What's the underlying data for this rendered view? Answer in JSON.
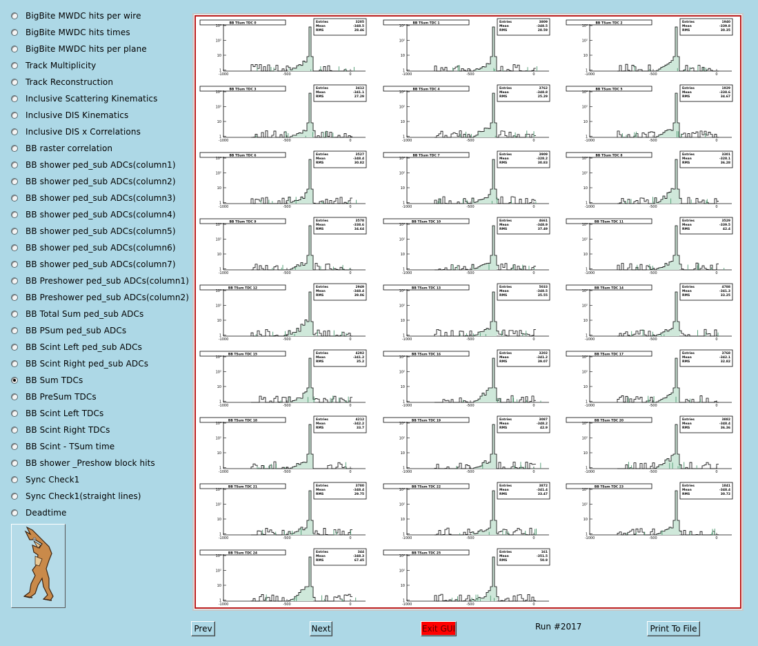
{
  "sidebar": {
    "options": [
      {
        "label": "BigBite MWDC hits per wire",
        "selected": false
      },
      {
        "label": "BigBite MWDC hits times",
        "selected": false
      },
      {
        "label": "BigBite MWDC hits per plane",
        "selected": false
      },
      {
        "label": "Track Multiplicity",
        "selected": false
      },
      {
        "label": "Track Reconstruction",
        "selected": false
      },
      {
        "label": "Inclusive Scattering Kinematics",
        "selected": false
      },
      {
        "label": "Inclusive DIS Kinematics",
        "selected": false
      },
      {
        "label": "Inclusive DIS x Correlations",
        "selected": false
      },
      {
        "label": "BB raster correlation",
        "selected": false
      },
      {
        "label": "BB shower ped_sub ADCs(column1)",
        "selected": false
      },
      {
        "label": "BB shower ped_sub ADCs(column2)",
        "selected": false
      },
      {
        "label": "BB shower ped_sub ADCs(column3)",
        "selected": false
      },
      {
        "label": "BB shower ped_sub ADCs(column4)",
        "selected": false
      },
      {
        "label": "BB shower ped_sub ADCs(column5)",
        "selected": false
      },
      {
        "label": "BB shower ped_sub ADCs(column6)",
        "selected": false
      },
      {
        "label": "BB shower ped_sub ADCs(column7)",
        "selected": false
      },
      {
        "label": "BB Preshower ped_sub ADCs(column1)",
        "selected": false
      },
      {
        "label": "BB Preshower ped_sub ADCs(column2)",
        "selected": false
      },
      {
        "label": "BB Total Sum ped_sub ADCs",
        "selected": false
      },
      {
        "label": "BB PSum ped_sub ADCs",
        "selected": false
      },
      {
        "label": "BB Scint Left ped_sub ADCs",
        "selected": false
      },
      {
        "label": "BB Scint Right ped_sub ADCs",
        "selected": false
      },
      {
        "label": "BB Sum TDCs",
        "selected": true
      },
      {
        "label": "BB PreSum TDCs",
        "selected": false
      },
      {
        "label": "BB Scint Left TDCs",
        "selected": false
      },
      {
        "label": "BB Scint Right TDCs",
        "selected": false
      },
      {
        "label": "BB Scint - TSum time",
        "selected": false
      },
      {
        "label": "BB shower _Preshow block hits",
        "selected": false
      },
      {
        "label": "Sync Check1",
        "selected": false
      },
      {
        "label": "Sync Check1(straight lines)",
        "selected": false
      },
      {
        "label": "Deadtime",
        "selected": false
      }
    ],
    "logo_icon": "coyote-logo-icon"
  },
  "canvas": {
    "border_color": "#b81a1a",
    "histograms": [
      {
        "title": "BB TSum TDC 0",
        "entries": "3205",
        "mean": "-348.5",
        "rms": "28.46"
      },
      {
        "title": "BB TSum TDC 1",
        "entries": "3809",
        "mean": "-348.5",
        "rms": "28.59"
      },
      {
        "title": "BB TSum TDC 2",
        "entries": "1940",
        "mean": "-339.8",
        "rms": "30.35"
      },
      {
        "title": "BB TSum TDC 3",
        "entries": "3412",
        "mean": "-341.1",
        "rms": "27.29"
      },
      {
        "title": "BB TSum TDC 4",
        "entries": "3762",
        "mean": "-348.8",
        "rms": "25.29"
      },
      {
        "title": "BB TSum TDC 5",
        "entries": "1929",
        "mean": "-338.6",
        "rms": "34.67"
      },
      {
        "title": "BB TSum TDC 6",
        "entries": "3527",
        "mean": "-348.4",
        "rms": "30.82"
      },
      {
        "title": "BB TSum TDC 7",
        "entries": "3909",
        "mean": "-328.2",
        "rms": "30.83"
      },
      {
        "title": "BB TSum TDC 8",
        "entries": "3301",
        "mean": "-328.1",
        "rms": "36.28"
      },
      {
        "title": "BB TSum TDC 9",
        "entries": "3578",
        "mean": "-338.6",
        "rms": "34.64"
      },
      {
        "title": "BB TSum TDC 10",
        "entries": "4661",
        "mean": "-348.9",
        "rms": "37.49"
      },
      {
        "title": "BB TSum TDC 11",
        "entries": "3529",
        "mean": "-339.5",
        "rms": "42.4"
      },
      {
        "title": "BB TSum TDC 12",
        "entries": "2949",
        "mean": "-348.4",
        "rms": "39.06"
      },
      {
        "title": "BB TSum TDC 13",
        "entries": "5033",
        "mean": "-348.5",
        "rms": "35.55"
      },
      {
        "title": "BB TSum TDC 14",
        "entries": "4788",
        "mean": "-341.3",
        "rms": "33.25"
      },
      {
        "title": "BB TSum TDC 15",
        "entries": "4292",
        "mean": "-341.2",
        "rms": "35.2"
      },
      {
        "title": "BB TSum TDC 16",
        "entries": "3202",
        "mean": "-341.2",
        "rms": "39.07"
      },
      {
        "title": "BB TSum TDC 17",
        "entries": "3768",
        "mean": "-342.1",
        "rms": "32.82"
      },
      {
        "title": "BB TSum TDC 18",
        "entries": "4212",
        "mean": "-342.2",
        "rms": "33.7"
      },
      {
        "title": "BB TSum TDC 19",
        "entries": "3087",
        "mean": "-348.2",
        "rms": "42.9"
      },
      {
        "title": "BB TSum TDC 20",
        "entries": "3882",
        "mean": "-348.4",
        "rms": "36.36"
      },
      {
        "title": "BB TSum TDC 21",
        "entries": "3780",
        "mean": "-348.4",
        "rms": "29.75"
      },
      {
        "title": "BB TSum TDC 22",
        "entries": "3872",
        "mean": "-341.4",
        "rms": "33.47"
      },
      {
        "title": "BB TSum TDC 23",
        "entries": "1841",
        "mean": "-348.4",
        "rms": "30.72"
      },
      {
        "title": "BB TSum TDC 24",
        "entries": "344",
        "mean": "-348.3",
        "rms": "67.45"
      },
      {
        "title": "BB TSum TDC 25",
        "entries": "161",
        "mean": "-351.5",
        "rms": "50.9"
      }
    ],
    "stat_labels": {
      "entries": "Entries",
      "mean": "Mean",
      "rms": "RMS"
    },
    "y_ticks": [
      "10³",
      "10²",
      "10",
      "1"
    ],
    "x_ticks": [
      "-1000",
      "-500",
      "0"
    ]
  },
  "footer": {
    "prev_label": "Prev",
    "next_label": "Next",
    "exit_label": "Exit GUI",
    "run_label": "Run #2017",
    "print_label": "Print To File"
  }
}
